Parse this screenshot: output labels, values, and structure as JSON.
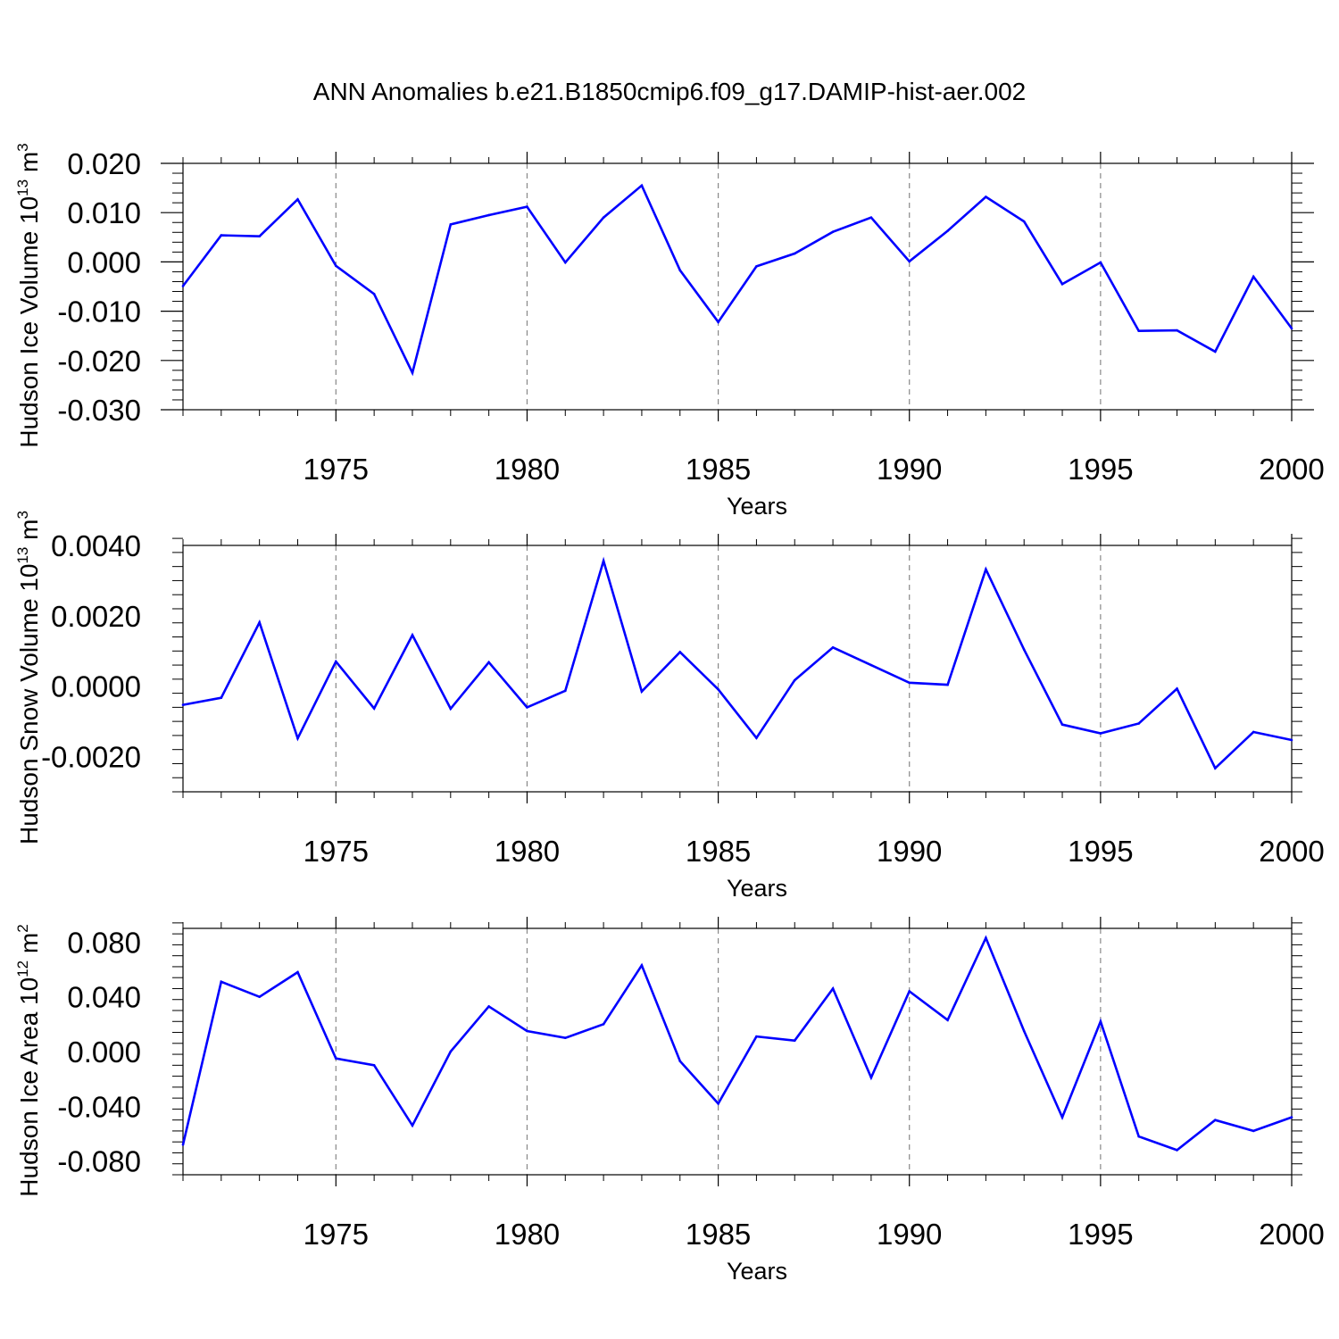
{
  "title": "ANN Anomalies b.e21.B1850cmip6.f09_g17.DAMIP-hist-aer.002",
  "line_color": "#0000ff",
  "grid_color": "#888888",
  "chart_data": [
    {
      "type": "line",
      "ylabel": {
        "base": "Hudson Ice Volume 10",
        "exp": "13",
        "unit": " m",
        "unit_exp": "3"
      },
      "xlabel": "Years",
      "xlim": [
        1971,
        2000
      ],
      "xticks": [
        1975,
        1980,
        1985,
        1990,
        1995,
        2000
      ],
      "ylim": [
        -0.03,
        0.02
      ],
      "yticks": [
        0.02,
        0.01,
        0.0,
        -0.01,
        -0.02,
        -0.03
      ],
      "ytick_labels": [
        "0.020",
        "0.010",
        "0.000",
        "-0.010",
        "-0.020",
        "-0.030"
      ],
      "ymajor_step": 0.01,
      "yminor_step": 0.002,
      "x": [
        1971,
        1972,
        1973,
        1974,
        1975,
        1976,
        1977,
        1978,
        1979,
        1980,
        1981,
        1982,
        1983,
        1984,
        1985,
        1986,
        1987,
        1988,
        1989,
        1990,
        1991,
        1992,
        1993,
        1994,
        1995,
        1996,
        1997,
        1998,
        1999,
        2000
      ],
      "values": [
        -0.0049,
        0.0054,
        0.0052,
        0.0127,
        -0.0008,
        -0.0065,
        -0.0225,
        0.0076,
        0.0095,
        0.0112,
        -0.0001,
        0.009,
        0.0155,
        -0.0017,
        -0.0122,
        -0.0009,
        0.0017,
        0.0061,
        0.009,
        0.0001,
        0.0063,
        0.0132,
        0.0082,
        -0.0045,
        -0.0001,
        -0.014,
        -0.0139,
        -0.0182,
        -0.003,
        -0.0135
      ]
    },
    {
      "type": "line",
      "ylabel": {
        "base": "Hudson Snow Volume 10",
        "exp": "13",
        "unit": " m",
        "unit_exp": "3"
      },
      "xlabel": "Years",
      "xlim": [
        1971,
        2000
      ],
      "xticks": [
        1975,
        1980,
        1985,
        1990,
        1995,
        2000
      ],
      "ylim": [
        -0.003,
        0.004
      ],
      "yticks": [
        0.004,
        0.002,
        0.0,
        -0.002
      ],
      "ytick_labels": [
        "0.0040",
        "0.0020",
        "0.0000",
        "-0.0020"
      ],
      "ymajor_step": 0.002,
      "yminor_step": 0.0004,
      "x": [
        1971,
        1972,
        1973,
        1974,
        1975,
        1976,
        1977,
        1978,
        1979,
        1980,
        1981,
        1982,
        1983,
        1984,
        1985,
        1986,
        1987,
        1988,
        1989,
        1990,
        1991,
        1992,
        1993,
        1994,
        1995,
        1996,
        1997,
        1998,
        1999,
        2000
      ],
      "values": [
        -0.00053,
        -0.00033,
        0.00181,
        -0.00148,
        0.0007,
        -0.00063,
        0.00145,
        -0.00064,
        0.00068,
        -0.0006,
        -0.00013,
        0.00356,
        -0.00015,
        0.00097,
        -9e-05,
        -0.00147,
        0.00017,
        0.0011,
        0.0006,
        0.0001,
        4e-05,
        0.00332,
        0.00104,
        -0.00109,
        -0.00134,
        -0.00106,
        -7e-05,
        -0.00233,
        -0.0013,
        -0.00153
      ]
    },
    {
      "type": "line",
      "ylabel": {
        "base": "Hudson Ice Area 10",
        "exp": "12",
        "unit": " m",
        "unit_exp": "2"
      },
      "xlabel": "Years",
      "xlim": [
        1971,
        2000
      ],
      "xticks": [
        1975,
        1980,
        1985,
        1990,
        1995,
        2000
      ],
      "ylim": [
        -0.09,
        0.09
      ],
      "yticks": [
        0.08,
        0.04,
        0.0,
        -0.04,
        -0.08
      ],
      "ytick_labels": [
        "0.080",
        "0.040",
        "0.000",
        "-0.040",
        "-0.080"
      ],
      "ymajor_step": 0.04,
      "yminor_step": 0.008,
      "x": [
        1971,
        1972,
        1973,
        1974,
        1975,
        1976,
        1977,
        1978,
        1979,
        1980,
        1981,
        1982,
        1983,
        1984,
        1985,
        1986,
        1987,
        1988,
        1989,
        1990,
        1991,
        1992,
        1993,
        1994,
        1995,
        1996,
        1997,
        1998,
        1999,
        2000
      ],
      "values": [
        -0.068,
        0.051,
        0.04,
        0.058,
        -0.005,
        -0.01,
        -0.054,
        0.0,
        0.033,
        0.015,
        0.01,
        0.02,
        0.063,
        -0.007,
        -0.038,
        0.011,
        0.008,
        0.046,
        -0.019,
        0.044,
        0.023,
        0.083,
        0.015,
        -0.048,
        0.022,
        -0.062,
        -0.072,
        -0.05,
        -0.058,
        -0.048
      ]
    }
  ]
}
